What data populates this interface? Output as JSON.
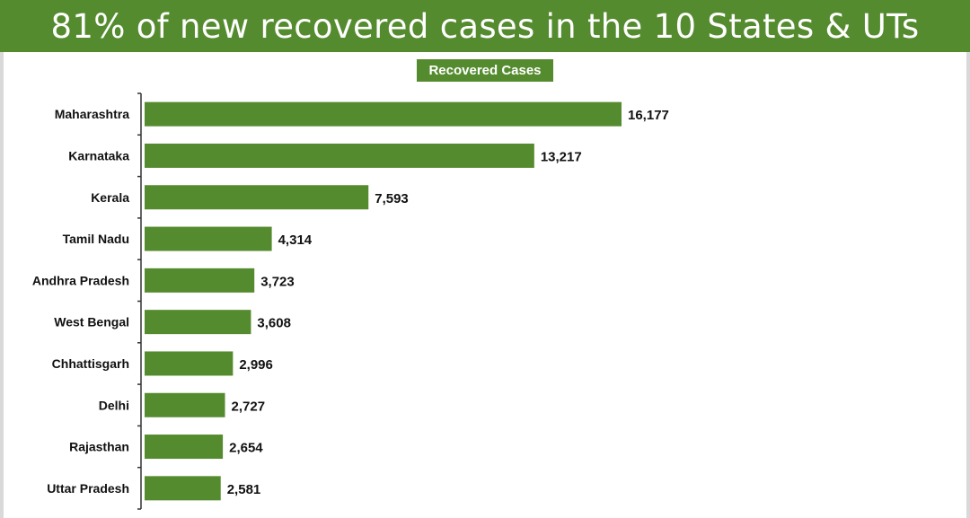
{
  "title": "81% of new recovered cases in the 10 States & UTs",
  "colors": {
    "header_bg": "#558b2f",
    "bar": "#558b2f",
    "text": "#111111",
    "background": "#ffffff"
  },
  "chart_data": {
    "type": "bar",
    "orientation": "horizontal",
    "categories": [
      "Maharashtra",
      "Karnataka",
      "Kerala",
      "Tamil Nadu",
      "Andhra Pradesh",
      "West Bengal",
      "Chhattisgarh",
      "Delhi",
      "Rajasthan",
      "Uttar Pradesh"
    ],
    "series": [
      {
        "name": "Recovered Cases",
        "values": [
          16177,
          13217,
          7593,
          4314,
          3723,
          3608,
          2996,
          2727,
          2654,
          2581
        ],
        "labels": [
          "16,177",
          "13,217",
          "7,593",
          "4,314",
          "3,723",
          "3,608",
          "2,996",
          "2,727",
          "2,654",
          "2,581"
        ]
      }
    ],
    "xlim": [
      0,
      16177
    ],
    "grid": false,
    "data_labels": true
  }
}
